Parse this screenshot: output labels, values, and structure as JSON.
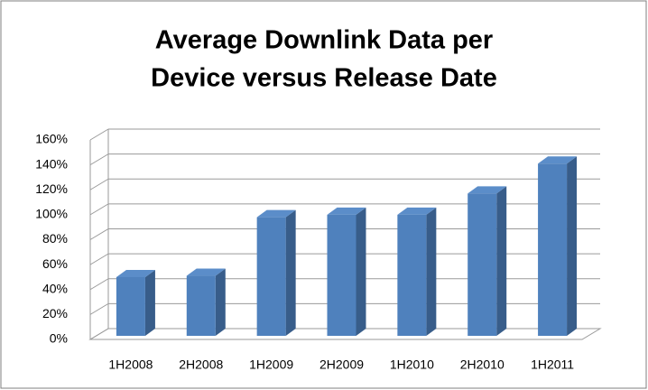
{
  "chart_data": {
    "type": "bar3d",
    "title": "Average Downlink Data per Device versus Release Date",
    "categories": [
      "1H2008",
      "2H2008",
      "1H2009",
      "2H2009",
      "1H2010",
      "2H2010",
      "1H2011"
    ],
    "values": [
      50,
      51,
      98,
      100,
      100,
      117,
      141
    ],
    "color": "#4f81bd",
    "ylim": [
      0,
      160
    ],
    "yticks": [
      {
        "value": 0,
        "label": "0%"
      },
      {
        "value": 20,
        "label": "20%"
      },
      {
        "value": 40,
        "label": "40%"
      },
      {
        "value": 60,
        "label": "60%"
      },
      {
        "value": 80,
        "label": "80%"
      },
      {
        "value": 100,
        "label": "100%"
      },
      {
        "value": 120,
        "label": "120%"
      },
      {
        "value": 140,
        "label": "140%"
      },
      {
        "value": 160,
        "label": "160%"
      }
    ],
    "grid": true
  }
}
